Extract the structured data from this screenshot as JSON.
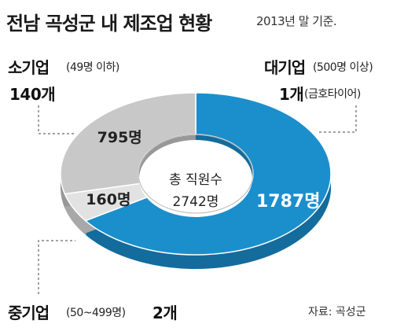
{
  "title": "전남 곡성군 내 제조업 현황",
  "subtitle": "2013년 말 기준.",
  "source": "자료: 곡성군",
  "center_label": {
    "line1": "총 직원수",
    "line2": "2742명"
  },
  "categories": {
    "small": {
      "name": "소기업",
      "note": "(49명 이하)",
      "count": "140개"
    },
    "large": {
      "name": "대기업",
      "note": "(500명 이상)",
      "count": "1개",
      "count_note": "(금호타이어)"
    },
    "medium": {
      "name": "중기업",
      "note": "(50~499명)",
      "count": "2개"
    }
  },
  "chart_data": {
    "type": "pie",
    "title": "전남 곡성군 내 제조업 현황",
    "categories": [
      "대기업",
      "중기업",
      "소기업"
    ],
    "values": [
      1787,
      160,
      795
    ],
    "value_labels": [
      "1787명",
      "160명",
      "795명"
    ],
    "total": 2742,
    "colors": {
      "large": "#1b8fcc",
      "medium": "#e2e2e2",
      "small": "#c8c8c8"
    }
  }
}
